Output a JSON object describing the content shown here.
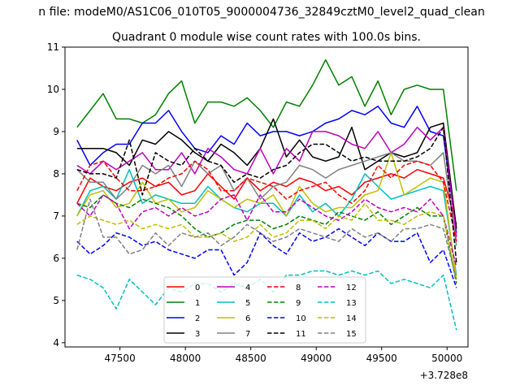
{
  "chart_data": {
    "type": "line",
    "suptitle": "n file: modeM0/AS1C06_010T05_9000004736_32849cztM0_level2_quad_clean",
    "title": "Quadrant 0 module wise count rates with 100.0s bins.",
    "xlabel": "",
    "ylabel": "",
    "x_offset_label": "+3.728e8",
    "xlim": [
      47080,
      50160
    ],
    "ylim": [
      3.9,
      11.0
    ],
    "xticks": [
      47500,
      48000,
      48500,
      49000,
      49500,
      50000
    ],
    "yticks": [
      4,
      5,
      6,
      7,
      8,
      9,
      10,
      11
    ],
    "legend_position": "lower center",
    "x": [
      47172,
      47272,
      47372,
      47472,
      47572,
      47672,
      47772,
      47872,
      47972,
      48072,
      48172,
      48272,
      48372,
      48472,
      48572,
      48672,
      48772,
      48872,
      48972,
      49072,
      49172,
      49272,
      49372,
      49472,
      49572,
      49672,
      49772,
      49872,
      49972,
      50072
    ],
    "series": [
      {
        "name": "0",
        "color": "#ff0000",
        "dash": "solid",
        "values": [
          7.3,
          7.9,
          7.7,
          7.6,
          7.8,
          7.9,
          7.7,
          7.8,
          7.5,
          7.6,
          8.0,
          7.7,
          7.4,
          7.9,
          7.6,
          7.8,
          7.7,
          7.9,
          7.8,
          7.6,
          7.7,
          7.5,
          7.8,
          7.9,
          8.0,
          7.9,
          8.1,
          8.0,
          7.9,
          6.8
        ]
      },
      {
        "name": "1",
        "color": "#008000",
        "dash": "solid",
        "values": [
          9.1,
          9.5,
          9.9,
          9.3,
          9.3,
          9.2,
          9.4,
          9.9,
          10.2,
          9.2,
          9.7,
          9.7,
          9.6,
          9.8,
          9.5,
          9.1,
          9.7,
          9.6,
          10.1,
          10.7,
          10.1,
          10.3,
          9.6,
          10.2,
          9.4,
          10.0,
          10.1,
          10.0,
          10.0,
          7.6
        ]
      },
      {
        "name": "2",
        "color": "#0000ff",
        "dash": "solid",
        "values": [
          8.8,
          8.2,
          8.5,
          8.7,
          8.7,
          9.2,
          9.2,
          9.5,
          9.0,
          8.6,
          8.5,
          8.9,
          8.7,
          9.2,
          8.9,
          9.0,
          9.0,
          8.9,
          9.0,
          9.2,
          9.3,
          9.5,
          9.4,
          9.6,
          9.2,
          9.1,
          9.6,
          9.0,
          8.9,
          6.6
        ]
      },
      {
        "name": "3",
        "color": "#000000",
        "dash": "solid",
        "values": [
          8.6,
          8.6,
          8.6,
          8.5,
          8.2,
          8.8,
          8.7,
          9.0,
          8.8,
          8.5,
          8.3,
          8.7,
          8.5,
          8.2,
          8.6,
          9.3,
          8.4,
          8.8,
          8.4,
          8.3,
          8.4,
          9.1,
          8.1,
          8.3,
          8.5,
          8.4,
          8.5,
          9.1,
          9.2,
          6.7
        ]
      },
      {
        "name": "4",
        "color": "#bf00bf",
        "dash": "solid",
        "values": [
          8.2,
          8.0,
          8.3,
          8.1,
          8.3,
          8.5,
          8.1,
          8.1,
          8.5,
          8.0,
          8.6,
          8.4,
          8.1,
          8.0,
          8.6,
          8.0,
          8.6,
          8.3,
          9.0,
          9.0,
          8.9,
          8.7,
          8.6,
          9.0,
          8.5,
          8.7,
          9.1,
          8.8,
          9.1,
          6.5
        ]
      },
      {
        "name": "5",
        "color": "#00bfbf",
        "dash": "solid",
        "values": [
          7.0,
          7.6,
          7.7,
          7.4,
          8.1,
          7.3,
          7.5,
          7.4,
          7.3,
          7.3,
          7.7,
          7.4,
          7.2,
          7.1,
          7.3,
          7.3,
          7.0,
          7.5,
          7.1,
          7.3,
          7.0,
          7.4,
          8.0,
          7.7,
          7.4,
          7.5,
          7.6,
          7.7,
          7.6,
          5.6
        ]
      },
      {
        "name": "6",
        "color": "#bfbf00",
        "dash": "solid",
        "values": [
          7.0,
          7.5,
          7.6,
          7.2,
          7.3,
          7.8,
          7.3,
          7.4,
          7.1,
          7.2,
          7.6,
          7.4,
          7.2,
          7.4,
          7.3,
          7.5,
          7.0,
          7.7,
          7.3,
          7.1,
          7.2,
          7.2,
          7.5,
          7.6,
          8.5,
          7.5,
          7.7,
          7.9,
          7.8,
          5.5
        ]
      },
      {
        "name": "7",
        "color": "#808080",
        "dash": "solid",
        "values": [
          8.1,
          7.8,
          7.8,
          7.4,
          7.7,
          8.2,
          8.0,
          8.2,
          7.7,
          8.3,
          8.0,
          8.2,
          7.6,
          7.9,
          7.4,
          7.7,
          7.8,
          8.2,
          8.1,
          7.9,
          8.1,
          8.2,
          8.3,
          8.4,
          8.5,
          8.3,
          8.3,
          8.2,
          8.5,
          6.3
        ]
      },
      {
        "name": "8",
        "color": "#ff0000",
        "dash": "dashed",
        "values": [
          7.6,
          8.2,
          8.3,
          7.9,
          7.6,
          7.6,
          7.7,
          7.9,
          8.0,
          8.3,
          8.1,
          7.6,
          7.6,
          7.9,
          7.8,
          7.7,
          7.4,
          7.6,
          7.7,
          7.8,
          7.5,
          7.3,
          7.6,
          8.2,
          7.9,
          8.2,
          8.3,
          8.2,
          7.8,
          6.4
        ]
      },
      {
        "name": "9",
        "color": "#008000",
        "dash": "dashed",
        "values": [
          7.3,
          7.2,
          7.5,
          7.3,
          7.2,
          7.4,
          7.3,
          7.2,
          7.0,
          6.7,
          6.5,
          6.6,
          6.8,
          6.9,
          6.9,
          6.7,
          6.8,
          7.0,
          6.9,
          6.8,
          7.1,
          7.0,
          6.9,
          7.1,
          6.8,
          7.0,
          7.2,
          7.0,
          7.0,
          5.4
        ]
      },
      {
        "name": "10",
        "color": "#0000ff",
        "dash": "dashed",
        "values": [
          6.4,
          6.1,
          6.3,
          6.6,
          6.5,
          6.3,
          6.4,
          6.2,
          6.1,
          6.0,
          6.2,
          6.2,
          5.6,
          5.9,
          6.6,
          6.3,
          6.1,
          6.6,
          6.4,
          6.5,
          6.7,
          6.5,
          6.3,
          6.6,
          6.4,
          6.4,
          6.6,
          5.9,
          6.2,
          5.3
        ]
      },
      {
        "name": "11",
        "color": "#000000",
        "dash": "dashed",
        "values": [
          8.1,
          8.0,
          8.0,
          7.9,
          8.8,
          7.5,
          8.5,
          8.3,
          8.2,
          8.6,
          8.3,
          8.2,
          7.8,
          8.0,
          7.9,
          8.1,
          8.2,
          8.5,
          8.7,
          8.7,
          8.5,
          8.3,
          8.4,
          8.3,
          8.3,
          8.3,
          8.4,
          8.6,
          9.1,
          5.9
        ]
      },
      {
        "name": "12",
        "color": "#bf00bf",
        "dash": "dashed",
        "values": [
          7.3,
          7.0,
          7.5,
          7.3,
          6.7,
          7.1,
          7.2,
          7.0,
          7.2,
          7.0,
          7.1,
          7.4,
          7.5,
          6.9,
          7.5,
          7.1,
          7.1,
          7.4,
          7.2,
          7.0,
          6.9,
          7.1,
          7.4,
          7.2,
          7.1,
          7.2,
          7.1,
          7.4,
          7.0,
          5.8
        ]
      },
      {
        "name": "13",
        "color": "#00bfbf",
        "dash": "dashed",
        "values": [
          5.6,
          5.5,
          5.3,
          4.8,
          5.5,
          5.2,
          4.9,
          5.3,
          5.2,
          5.4,
          5.4,
          5.2,
          5.4,
          5.3,
          5.5,
          5.2,
          5.6,
          5.6,
          5.7,
          5.7,
          5.6,
          5.7,
          5.6,
          5.7,
          5.4,
          5.5,
          5.4,
          5.3,
          5.6,
          4.3
        ]
      },
      {
        "name": "14",
        "color": "#bfbf00",
        "dash": "dashed",
        "values": [
          6.8,
          7.0,
          6.9,
          6.8,
          6.9,
          6.7,
          6.8,
          6.7,
          6.8,
          6.5,
          6.5,
          6.6,
          6.4,
          6.5,
          6.8,
          6.5,
          6.6,
          6.9,
          6.9,
          6.7,
          7.0,
          6.9,
          7.3,
          6.9,
          6.9,
          6.8,
          7.0,
          7.1,
          7.0,
          5.5
        ]
      },
      {
        "name": "15",
        "color": "#808080",
        "dash": "dashed",
        "values": [
          6.2,
          7.4,
          6.5,
          6.5,
          6.1,
          6.2,
          6.6,
          6.3,
          6.6,
          6.5,
          6.6,
          6.3,
          6.5,
          6.8,
          6.6,
          6.4,
          6.5,
          6.7,
          6.6,
          6.5,
          6.4,
          6.7,
          6.5,
          6.6,
          6.4,
          6.7,
          6.7,
          6.8,
          6.7,
          5.5
        ]
      }
    ]
  }
}
